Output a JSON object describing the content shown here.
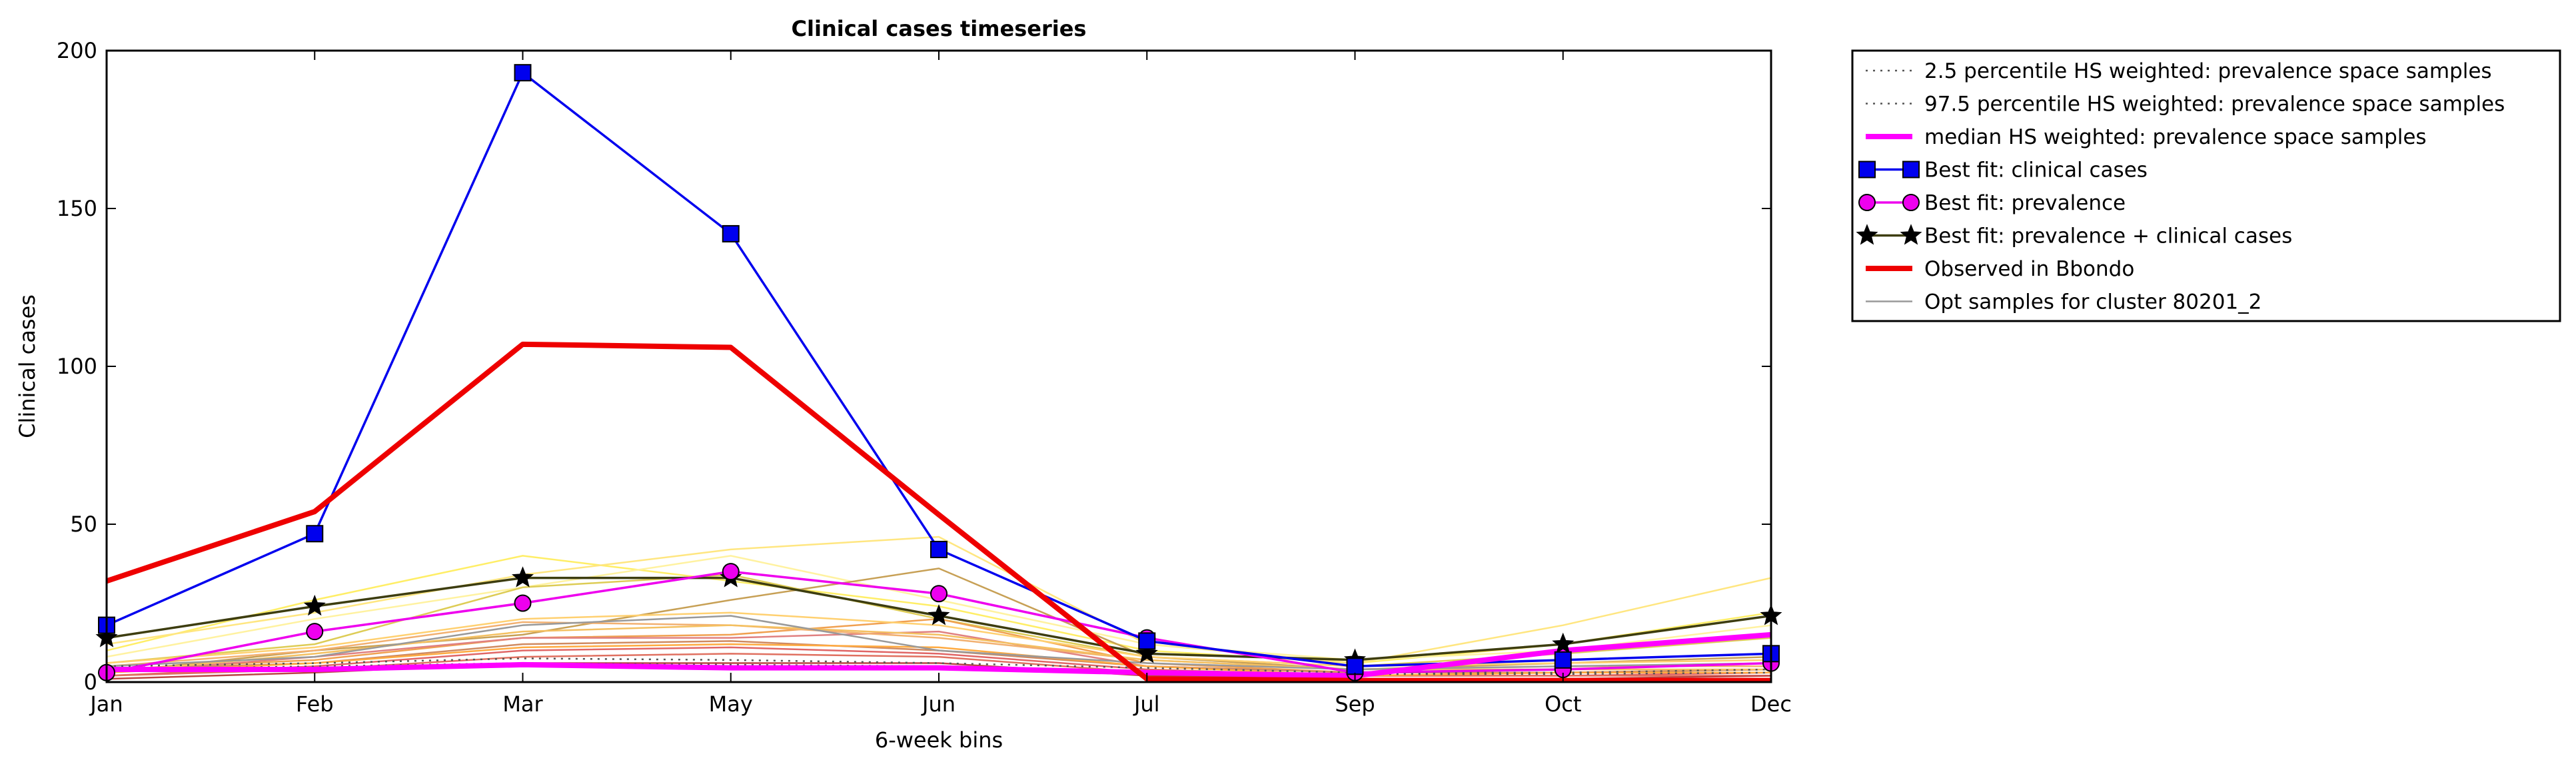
{
  "chart_data": {
    "type": "line",
    "title": "Clinical cases timeseries",
    "xlabel": "6-week bins",
    "ylabel": "Clinical cases",
    "categories": [
      "Jan",
      "Feb",
      "Mar",
      "May",
      "Jun",
      "Jul",
      "Sep",
      "Oct",
      "Dec"
    ],
    "ylim": [
      0,
      200
    ],
    "yticks": [
      0,
      50,
      100,
      150,
      200
    ],
    "grid": false,
    "legend_placement": "outside-top-right",
    "series": [
      {
        "name": "2.5 percentile HS weighted: prevalence space samples",
        "color": "#555555",
        "style": "dotted",
        "values": [
          4,
          5,
          6,
          5.5,
          5,
          3.5,
          2.5,
          2.5,
          3
        ]
      },
      {
        "name": "97.5 percentile HS weighted: prevalence space samples",
        "color": "#555555",
        "style": "dotted",
        "values": [
          5,
          6,
          7.5,
          7,
          6,
          4.5,
          3,
          3,
          4
        ]
      },
      {
        "name": "median HS weighted: prevalence space samples",
        "color": "#ff00ff",
        "style": "thick",
        "values": [
          4,
          4,
          5.5,
          4.5,
          4.5,
          3,
          2,
          10,
          15
        ]
      },
      {
        "name": "Best fit: clinical cases",
        "color": "#0000ee",
        "marker": "square",
        "values": [
          18,
          47,
          193,
          142,
          42,
          13,
          5,
          7,
          9
        ]
      },
      {
        "name": "Best fit: prevalence",
        "color": "#ee00ee",
        "marker": "circle",
        "values": [
          3,
          16,
          25,
          35,
          28,
          14,
          3,
          4,
          6
        ]
      },
      {
        "name": "Best fit: prevalence + clinical cases",
        "color": "#3d3d10",
        "marker": "star",
        "values": [
          14,
          24,
          33,
          33,
          21,
          9,
          7,
          12,
          21
        ]
      },
      {
        "name": "Observed in Bbondo",
        "color": "#ee0000",
        "style": "thick",
        "values": [
          32,
          54,
          107,
          106,
          53,
          1,
          0.5,
          0.5,
          0.5
        ]
      },
      {
        "name": "Opt samples for cluster 80201_2",
        "color": "#999999",
        "style": "thin",
        "values": [
          5,
          8,
          18,
          21,
          10,
          6,
          4,
          5,
          6
        ]
      }
    ],
    "sample_lines": [
      {
        "color": "#ffee66",
        "values": [
          10,
          26,
          40,
          32,
          24,
          10,
          6,
          12,
          22
        ]
      },
      {
        "color": "#ffe680",
        "values": [
          12,
          22,
          34,
          42,
          46,
          12,
          6,
          18,
          33
        ]
      },
      {
        "color": "#fff2a0",
        "values": [
          8,
          20,
          30,
          40,
          26,
          12,
          7,
          10,
          18
        ]
      },
      {
        "color": "#ddcc55",
        "values": [
          6,
          12,
          30,
          34,
          20,
          8,
          5,
          9,
          14
        ]
      },
      {
        "color": "#c7a055",
        "values": [
          3,
          10,
          15,
          26,
          36,
          8,
          4,
          6,
          8
        ]
      },
      {
        "color": "#f0a050",
        "values": [
          4,
          7,
          14,
          15,
          20,
          6,
          3,
          4,
          6
        ]
      },
      {
        "color": "#e08080",
        "values": [
          3,
          8,
          14,
          14,
          16,
          5,
          3,
          3,
          4
        ]
      },
      {
        "color": "#f2b070",
        "values": [
          5,
          10,
          19,
          18,
          14,
          7,
          4,
          5,
          5
        ]
      },
      {
        "color": "#e06666",
        "values": [
          2,
          5,
          10,
          11,
          9,
          4,
          2,
          2,
          3
        ]
      },
      {
        "color": "#d08a60",
        "values": [
          4,
          6,
          12,
          13,
          10,
          5,
          3,
          3,
          4
        ]
      },
      {
        "color": "#f4c060",
        "values": [
          3,
          9,
          16,
          18,
          15,
          7,
          4,
          4,
          4
        ]
      },
      {
        "color": "#ffd070",
        "values": [
          6,
          11,
          20,
          22,
          18,
          8,
          5,
          6,
          7
        ]
      },
      {
        "color": "#e07060",
        "values": [
          2,
          4,
          8,
          9,
          8,
          3,
          2,
          2,
          2
        ]
      },
      {
        "color": "#ffaa40",
        "values": [
          3,
          6,
          11,
          12,
          11,
          5,
          2,
          3,
          3
        ]
      },
      {
        "color": "#bb4444",
        "values": [
          1,
          3,
          6,
          6,
          6,
          2,
          1,
          1,
          2
        ]
      }
    ]
  }
}
